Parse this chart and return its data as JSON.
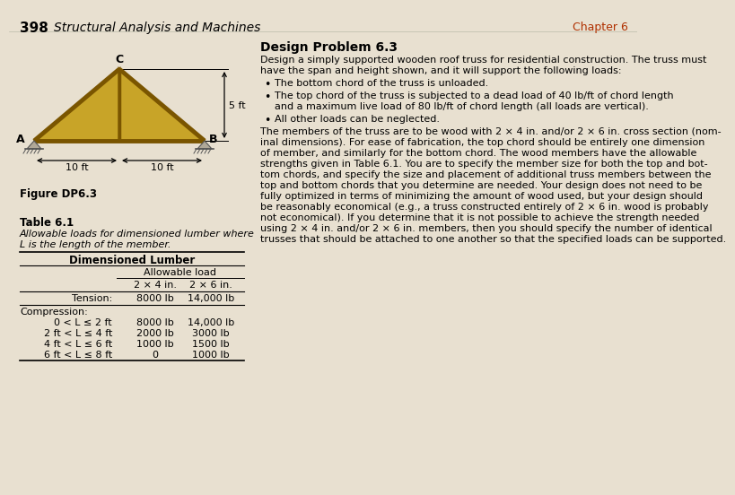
{
  "bg_color": "#e8e0d0",
  "page_number": "398",
  "book_title": "Structural Analysis and Machines",
  "chapter_label": "Chapter 6",
  "figure_label": "Figure DP6.3",
  "table_title": "Table 6.1",
  "table_subtitle_line1": "Allowable loads for dimensioned lumber where",
  "table_subtitle_line2": "L is the length of the member.",
  "table_header1": "Dimensioned Lumber",
  "table_header2": "Allowable load",
  "table_col1": "2 × 4 in.",
  "table_col2": "2 × 6 in.",
  "table_tension_label": "Tension:",
  "table_tension_val1": "8000 lb",
  "table_tension_val2": "14,000 lb",
  "table_compression_label": "Compression:",
  "table_comp_rows": [
    [
      "0 < L ≤ 2 ft",
      "8000 lb",
      "14,000 lb"
    ],
    [
      "2 ft < L ≤ 4 ft",
      "2000 lb",
      "3000 lb"
    ],
    [
      "4 ft < L ≤ 6 ft",
      "1000 lb",
      "1500 lb"
    ],
    [
      "6 ft < L ≤ 8 ft",
      "0",
      "1000 lb"
    ]
  ],
  "dp_title": "Design Problem 6.3",
  "dp_intro1": "Design a simply supported wooden roof truss for residential construction. The truss must",
  "dp_intro2": "have the span and height shown, and it will support the following loads:",
  "bullet1": "The bottom chord of the truss is unloaded.",
  "bullet2a": "The top chord of the truss is subjected to a dead load of 40 lb/ft of chord length",
  "bullet2b": "and a maximum live load of 80 lb/ft of chord length (all loads are vertical).",
  "bullet3": "All other loads can be neglected.",
  "para_lines": [
    "The members of the truss are to be wood with 2 × 4 in. and/or 2 × 6 in. cross section (nom-",
    "inal dimensions). For ease of fabrication, the top chord should be entirely one dimension",
    "of member, and similarly for the bottom chord. The wood members have the allowable",
    "strengths given in Table 6.1. You are to specify the member size for both the top and bot-",
    "tom chords, and specify the size and placement of additional truss members between the",
    "top and bottom chords that you determine are needed. Your design does not need to be",
    "fully optimized in terms of minimizing the amount of wood used, but your design should",
    "be reasonably economical (e.g., a truss constructed entirely of 2 × 6 in. wood is probably",
    "not economical). If you determine that it is not possible to achieve the strength needed",
    "using 2 × 4 in. and/or 2 × 6 in. members, then you should specify the number of identical",
    "trusses that should be attached to one another so that the specified loads can be supported."
  ],
  "truss_fill": "#c8a428",
  "truss_line": "#7a5500",
  "chapter_color": "#b03000"
}
